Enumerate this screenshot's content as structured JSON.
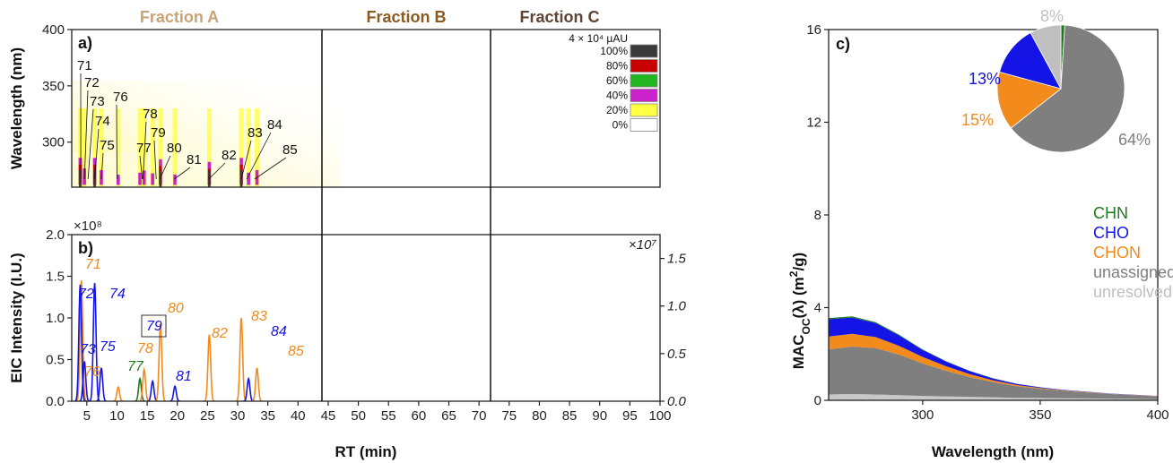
{
  "figure": {
    "fractions": [
      {
        "label": "Fraction A",
        "color": "#c9a477"
      },
      {
        "label": "Fraction B",
        "color": "#8b5a22"
      },
      {
        "label": "Fraction C",
        "color": "#5e4535"
      }
    ],
    "panel_a": "a)",
    "panel_b": "b)",
    "panel_c": "c)",
    "x_label": "RT (min)",
    "c_x_label": "Wavelength (nm)"
  },
  "chart_data": [
    {
      "id": "a",
      "type": "heatmap",
      "ylabel": "Wavelength (nm)",
      "ylim": [
        260,
        400
      ],
      "yticks": [
        300,
        350,
        400
      ],
      "xlim": [
        2.5,
        100
      ],
      "intensity_label": "4 × 10⁴ µAU",
      "legend": [
        {
          "label": "100%",
          "color": "#3a3a3a"
        },
        {
          "label": "80%",
          "color": "#c80000"
        },
        {
          "label": "60%",
          "color": "#22b522"
        },
        {
          "label": "40%",
          "color": "#cc22cc"
        },
        {
          "label": "20%",
          "color": "#ffff44"
        },
        {
          "label": "0%",
          "color": "#ffffff"
        }
      ],
      "peak_labels": [
        {
          "id": "71",
          "rt": 4.0
        },
        {
          "id": "72",
          "rt": 4.6
        },
        {
          "id": "73",
          "rt": 5.2
        },
        {
          "id": "74",
          "rt": 6.3
        },
        {
          "id": "75",
          "rt": 7.4
        },
        {
          "id": "76",
          "rt": 10.0
        },
        {
          "id": "77",
          "rt": 14.2
        },
        {
          "id": "78",
          "rt": 14.3
        },
        {
          "id": "79",
          "rt": 16.5
        },
        {
          "id": "80",
          "rt": 17.1
        },
        {
          "id": "81",
          "rt": 19.5
        },
        {
          "id": "82",
          "rt": 25.2
        },
        {
          "id": "83",
          "rt": 30.6
        },
        {
          "id": "84",
          "rt": 31.5
        },
        {
          "id": "85",
          "rt": 32.8
        }
      ]
    },
    {
      "id": "b",
      "type": "line",
      "ylabel": "EIC Intensity (I.U.)",
      "left_multiplier": "×10⁸",
      "right_multiplier": "×10⁷",
      "ylim": [
        0,
        2.0
      ],
      "yticks": [
        "0.0",
        "0.5",
        "1.0",
        "1.5",
        "2.0"
      ],
      "right_ylim": [
        0,
        1.75
      ],
      "right_yticks": [
        "0.0",
        "0.5",
        "1.0",
        "1.5"
      ],
      "xlim": [
        2.5,
        100
      ],
      "xticks": [
        5,
        10,
        15,
        20,
        25,
        30,
        35,
        40,
        45,
        50,
        55,
        60,
        65,
        70,
        75,
        80,
        85,
        90,
        95,
        100
      ],
      "dividers": [
        40,
        65
      ],
      "peaks": [
        {
          "id": "71",
          "rt": 4.1,
          "height": 1.45,
          "class": "CHON"
        },
        {
          "id": "72",
          "rt": 3.9,
          "height": 1.4,
          "class": "CHO"
        },
        {
          "id": "73",
          "rt": 4.6,
          "height": 0.48,
          "class": "CHO"
        },
        {
          "id": "74",
          "rt": 6.3,
          "height": 1.42,
          "class": "CHO"
        },
        {
          "id": "75",
          "rt": 7.4,
          "height": 0.4,
          "class": "CHO"
        },
        {
          "id": "76",
          "rt": 10.2,
          "height": 0.17,
          "class": "CHON"
        },
        {
          "id": "77",
          "rt": 13.8,
          "height": 0.27,
          "class": "CHN"
        },
        {
          "id": "78",
          "rt": 14.5,
          "height": 0.38,
          "class": "CHON"
        },
        {
          "id": "79",
          "rt": 15.9,
          "height": 0.24,
          "class": "CHO"
        },
        {
          "id": "80",
          "rt": 17.2,
          "height": 0.93,
          "class": "CHON"
        },
        {
          "id": "81",
          "rt": 19.6,
          "height": 0.18,
          "class": "CHO"
        },
        {
          "id": "82",
          "rt": 25.3,
          "height": 0.8,
          "class": "CHON"
        },
        {
          "id": "83",
          "rt": 30.6,
          "height": 1.0,
          "class": "CHON"
        },
        {
          "id": "84",
          "rt": 31.8,
          "height": 0.27,
          "class": "CHO"
        },
        {
          "id": "85",
          "rt": 33.2,
          "height": 0.4,
          "class": "CHON"
        }
      ],
      "class_colors": {
        "CHN": "#1e7a1e",
        "CHO": "#1414e6",
        "CHON": "#f28a1c"
      }
    },
    {
      "id": "c",
      "type": "area",
      "xlabel": "Wavelength (nm)",
      "ylabel": "MAC",
      "ylabel_sub": "OC",
      "ylabel_rest": "(λ) (m",
      "ylabel_sup": "2",
      "ylabel_end": "/g)",
      "xlim": [
        260,
        400
      ],
      "ylim": [
        0,
        16
      ],
      "xticks": [
        300,
        350,
        400
      ],
      "yticks": [
        0,
        4,
        8,
        12,
        16
      ],
      "x": [
        260,
        270,
        280,
        290,
        300,
        310,
        320,
        330,
        340,
        350,
        360,
        370,
        380,
        390,
        400
      ],
      "series": [
        {
          "name": "unresolved",
          "color": "#c8c8c8",
          "values": [
            0.25,
            0.27,
            0.25,
            0.22,
            0.19,
            0.17,
            0.15,
            0.13,
            0.11,
            0.1,
            0.09,
            0.08,
            0.07,
            0.06,
            0.05
          ]
        },
        {
          "name": "unassigned",
          "color": "#7f7f7f",
          "values": [
            1.95,
            2.05,
            2.0,
            1.75,
            1.4,
            1.1,
            0.85,
            0.65,
            0.5,
            0.4,
            0.32,
            0.26,
            0.2,
            0.16,
            0.12
          ]
        },
        {
          "name": "CHON",
          "color": "#f28a1c",
          "values": [
            0.55,
            0.55,
            0.48,
            0.38,
            0.28,
            0.2,
            0.13,
            0.08,
            0.05,
            0.03,
            0.02,
            0.015,
            0.01,
            0.01,
            0.01
          ]
        },
        {
          "name": "CHO",
          "color": "#1414e6",
          "values": [
            0.75,
            0.7,
            0.6,
            0.45,
            0.3,
            0.2,
            0.13,
            0.08,
            0.05,
            0.03,
            0.02,
            0.015,
            0.01,
            0.01,
            0.01
          ]
        },
        {
          "name": "CHN",
          "color": "#1e7a1e",
          "values": [
            0.05,
            0.05,
            0.04,
            0.03,
            0.02,
            0.015,
            0.01,
            0.01,
            0.005,
            0.005,
            0,
            0,
            0,
            0,
            0
          ]
        }
      ],
      "legend": [
        {
          "name": "CHN",
          "color": "#1e7a1e"
        },
        {
          "name": "CHO",
          "color": "#1414e6"
        },
        {
          "name": "CHON",
          "color": "#f28a1c"
        },
        {
          "name": "unassigned",
          "color": "#7f7f7f"
        },
        {
          "name": "unresolved",
          "color": "#bfbfbf"
        }
      ],
      "pie": [
        {
          "name": "CHN",
          "value": 1,
          "label": "",
          "color": "#1e7a1e"
        },
        {
          "name": "unassigned",
          "value": 64,
          "label": "64%",
          "color": "#7f7f7f"
        },
        {
          "name": "CHON",
          "value": 15,
          "label": "15%",
          "color": "#f28a1c"
        },
        {
          "name": "CHO",
          "value": 13,
          "label": "13%",
          "color": "#1414e6"
        },
        {
          "name": "unresolved",
          "value": 8,
          "label": "8%",
          "color": "#bfbfbf"
        }
      ]
    }
  ]
}
